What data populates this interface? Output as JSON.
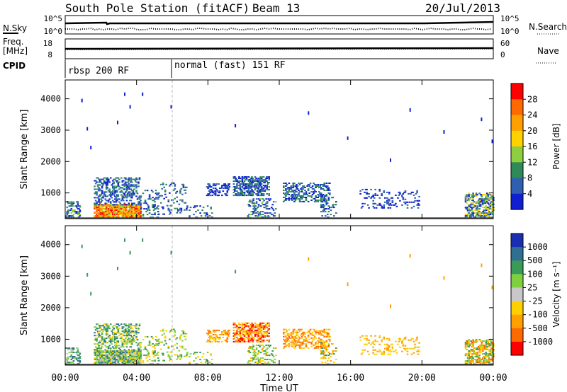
{
  "header": {
    "station": "South Pole Station (fitACF)",
    "beam": "Beam 13",
    "date": "20/Jul/2013"
  },
  "left_labels": {
    "nsky": "N.Sky",
    "freq": "Freq.",
    "freq_unit": "[MHz]",
    "cpid": "CPID"
  },
  "right_labels": {
    "nsearch": "N.Search",
    "nave": "Nave"
  },
  "ticks": {
    "noise_left": [
      "10^5",
      "10^0"
    ],
    "noise_right": [
      "10^5",
      "10^0"
    ],
    "freq_left": [
      "18",
      "8"
    ],
    "nave_right": [
      "60",
      "0"
    ]
  },
  "cpid_modes": [
    "rbsp 200 RF",
    "normal (fast) 151 RF"
  ],
  "chart_data": [
    {
      "type": "heatmap",
      "name": "power",
      "ylabel": "Slant Range [km]",
      "xlabel": "",
      "x_ticks": [
        "00:00",
        "04:00",
        "08:00",
        "12:00",
        "16:00",
        "20:00",
        "00:00"
      ],
      "x_tick_hours": [
        0,
        4,
        8,
        12,
        16,
        20,
        24
      ],
      "y_ticks": [
        1000,
        2000,
        3000,
        4000
      ],
      "xlim_hours": [
        0,
        24
      ],
      "ylim_km": [
        180,
        4600
      ],
      "colorbar_label": "Power [dB]",
      "colorbar_ticks": [
        "28",
        "24",
        "20",
        "16",
        "12",
        "8",
        "4"
      ],
      "colorbar_colors": [
        "#ff0000",
        "#ff6a00",
        "#ffa000",
        "#ffd200",
        "#8fcf3f",
        "#2e8b57",
        "#2f5fb0",
        "#1020d0"
      ]
    },
    {
      "type": "heatmap",
      "name": "velocity",
      "ylabel": "Slant Range [km]",
      "xlabel": "Time UT",
      "x_ticks": [
        "00:00",
        "04:00",
        "08:00",
        "12:00",
        "16:00",
        "20:00",
        "00:00"
      ],
      "x_tick_hours": [
        0,
        4,
        8,
        12,
        16,
        20,
        24
      ],
      "y_ticks": [
        1000,
        2000,
        3000,
        4000
      ],
      "xlim_hours": [
        0,
        24
      ],
      "ylim_km": [
        180,
        4600
      ],
      "colorbar_label": "Velocity [m s⁻¹]",
      "colorbar_ticks": [
        "1000",
        "500",
        "100",
        "25",
        "-25",
        "-100",
        "-500",
        "-1000"
      ],
      "colorbar_colors": [
        "#1a2fb0",
        "#2f6f8f",
        "#3a9a5a",
        "#7fd040",
        "#c8c8c8",
        "#ffd000",
        "#ffa000",
        "#ff6a00",
        "#ff0000"
      ]
    }
  ]
}
